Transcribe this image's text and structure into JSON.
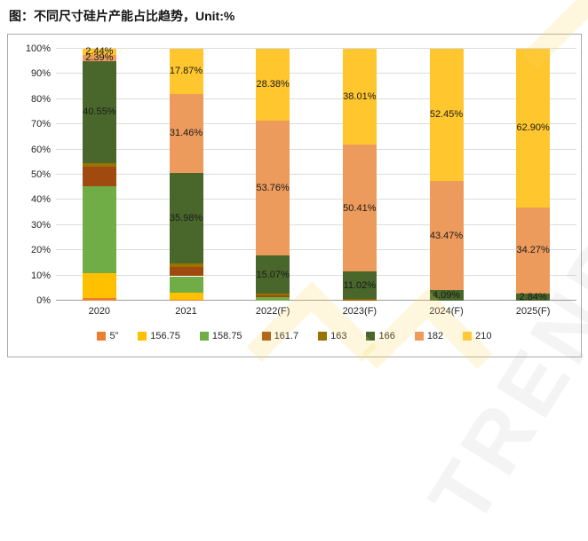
{
  "page": {
    "title": "图：不同尺寸硅片产能占比趋势，Unit:%"
  },
  "watermark": {
    "text": "TRENDFORCE"
  },
  "chart_data": {
    "type": "bar",
    "stacked": true,
    "title": "图：不同尺寸硅片产能占比趋势，Unit:%",
    "unit": "%",
    "categories": [
      "2020",
      "2021",
      "2022(F)",
      "2023(F)",
      "2024(F)",
      "2025(F)"
    ],
    "series": [
      {
        "name": "5”",
        "color": "#ED7D31",
        "labeled": false,
        "values": [
          1.0,
          0.39,
          0.0,
          0.0,
          0.0,
          0.0
        ]
      },
      {
        "name": "156.75",
        "color": "#FFC000",
        "labeled": false,
        "values": [
          10.0,
          2.8,
          0.0,
          0.0,
          0.0,
          0.0
        ]
      },
      {
        "name": "158.75",
        "color": "#70AD47",
        "labeled": false,
        "values": [
          34.5,
          6.5,
          1.5,
          0.31,
          0.0,
          0.0
        ]
      },
      {
        "name": "161.7",
        "color": "#A04A0F",
        "labeled": false,
        "values": [
          7.5,
          3.8,
          0.65,
          0.12,
          0.0,
          0.0
        ]
      },
      {
        "name": "163",
        "color": "#997300",
        "labeled": false,
        "values": [
          1.62,
          1.2,
          0.64,
          0.13,
          0.0,
          0.0
        ]
      },
      {
        "name": "166",
        "color": "#4A672B",
        "labeled": true,
        "values": [
          40.55,
          35.98,
          15.07,
          11.02,
          4.09,
          2.84
        ]
      },
      {
        "name": "182",
        "color": "#ED9B5C",
        "labeled": true,
        "values": [
          2.39,
          31.46,
          53.76,
          50.41,
          43.47,
          34.27
        ]
      },
      {
        "name": "210",
        "color": "#FFC62E",
        "labeled": true,
        "values": [
          2.44,
          17.87,
          28.38,
          38.01,
          52.45,
          62.9
        ]
      }
    ],
    "data_labels": {
      "166": [
        "40.55%",
        "35.98%",
        "15.07%",
        "11.02%",
        "4.09%",
        "2.84%"
      ],
      "182": [
        "2.39%",
        "31.46%",
        "53.76%",
        "50.41%",
        "43.47%",
        "34.27%"
      ],
      "210": [
        "2.44%",
        "17.87%",
        "28.38%",
        "38.01%",
        "52.45%",
        "62.90%"
      ]
    },
    "ylim": [
      0,
      100
    ],
    "yticks": [
      "0%",
      "10%",
      "20%",
      "30%",
      "40%",
      "50%",
      "60%",
      "70%",
      "80%",
      "90%",
      "100%"
    ],
    "grid": true,
    "legend_position": "bottom"
  }
}
